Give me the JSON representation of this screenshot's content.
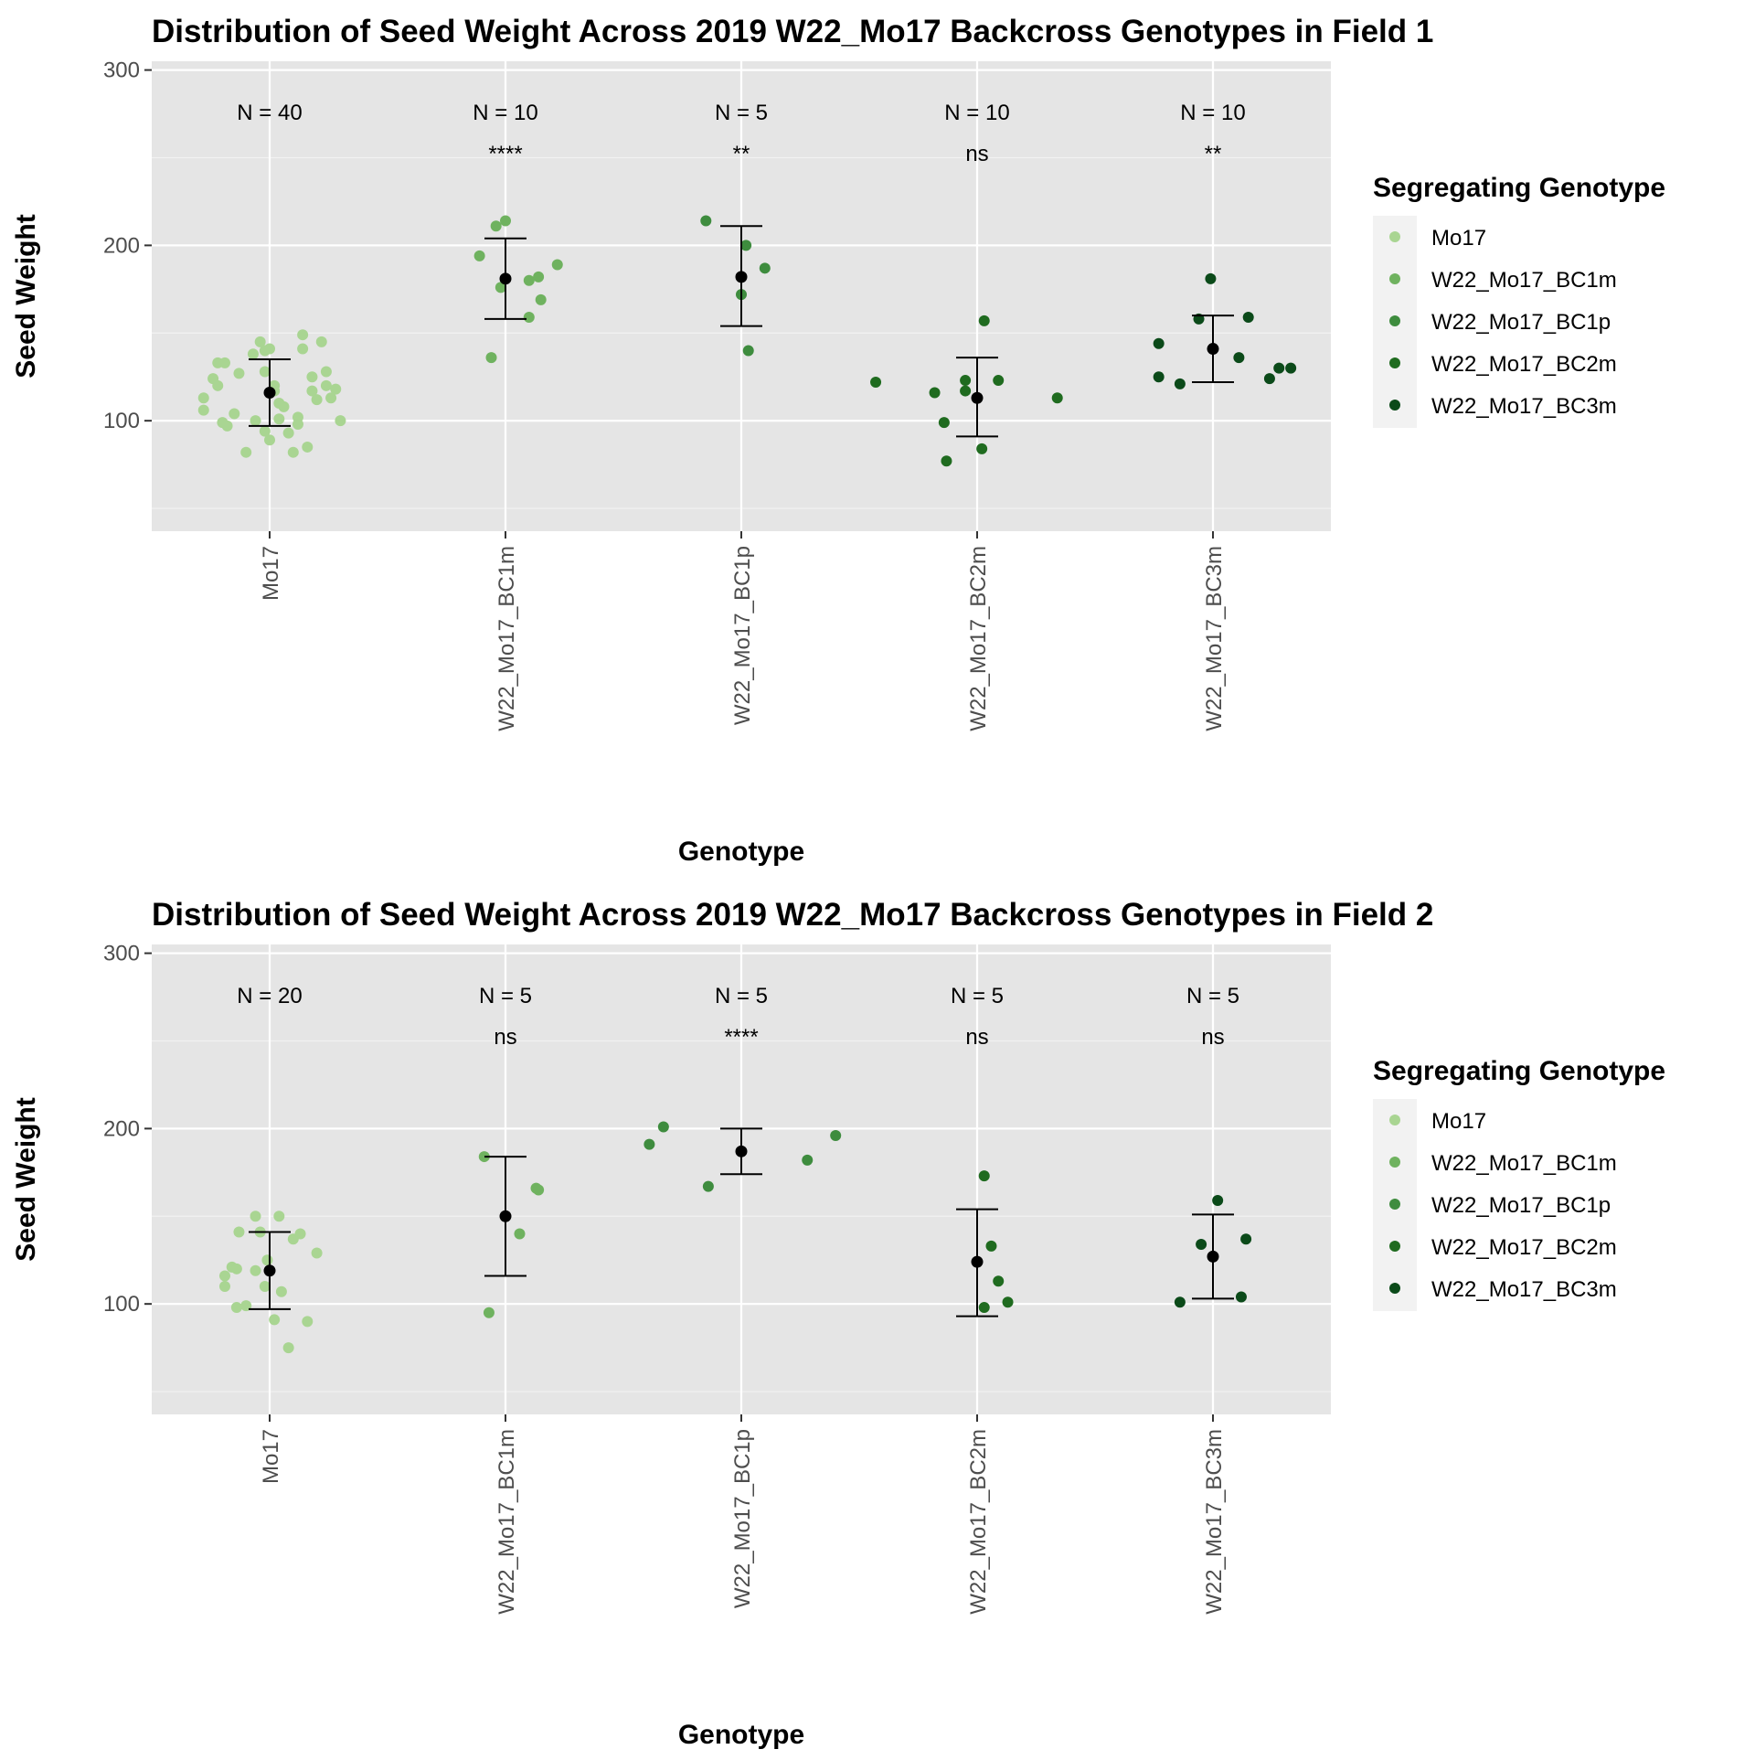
{
  "legend": {
    "title": "Segregating Genotype",
    "items": [
      {
        "label": "Mo17",
        "color": "#a9d592"
      },
      {
        "label": "W22_Mo17_BC1m",
        "color": "#6fb25f"
      },
      {
        "label": "W22_Mo17_BC1p",
        "color": "#3e8c3e"
      },
      {
        "label": "W22_Mo17_BC2m",
        "color": "#1f6b1f"
      },
      {
        "label": "W22_Mo17_BC3m",
        "color": "#0b4a19"
      }
    ]
  },
  "chart_data": [
    {
      "type": "scatter",
      "title": "Distribution of Seed Weight Across 2019 W22_Mo17 Backcross Genotypes in Field 1",
      "xlabel": "Genotype",
      "ylabel": "Seed Weight",
      "ylim": [
        37,
        305
      ],
      "yticks": [
        100,
        200,
        300
      ],
      "grid": true,
      "legend_position": "right",
      "categories": [
        "Mo17",
        "W22_Mo17_BC1m",
        "W22_Mo17_BC1p",
        "W22_Mo17_BC2m",
        "W22_Mo17_BC3m"
      ],
      "n_labels": [
        "N = 40",
        "N = 10",
        "N = 5",
        "N = 10",
        "N = 10"
      ],
      "significance": [
        "",
        "****",
        "**",
        "ns",
        "**"
      ],
      "series": [
        {
          "name": "Mo17",
          "points": [
            [
              -0.28,
              113
            ],
            [
              -0.28,
              106
            ],
            [
              -0.24,
              124
            ],
            [
              -0.22,
              120
            ],
            [
              -0.22,
              133
            ],
            [
              -0.19,
              133
            ],
            [
              -0.2,
              99
            ],
            [
              -0.18,
              97
            ],
            [
              -0.15,
              104
            ],
            [
              -0.13,
              127
            ],
            [
              -0.1,
              82
            ],
            [
              -0.07,
              138
            ],
            [
              -0.04,
              145
            ],
            [
              -0.02,
              140
            ],
            [
              -0.02,
              128
            ],
            [
              0.0,
              141
            ],
            [
              0.02,
              120
            ],
            [
              0.04,
              110
            ],
            [
              0.06,
              108
            ],
            [
              0.08,
              93
            ],
            [
              0.1,
              82
            ],
            [
              0.12,
              102
            ],
            [
              0.14,
              141
            ],
            [
              0.16,
              85
            ],
            [
              0.18,
              125
            ],
            [
              0.14,
              149
            ],
            [
              0.2,
              112
            ],
            [
              0.22,
              145
            ],
            [
              0.24,
              120
            ],
            [
              0.26,
              113
            ],
            [
              0.28,
              118
            ],
            [
              0.3,
              100
            ],
            [
              0.24,
              128
            ],
            [
              -0.02,
              94
            ],
            [
              0.0,
              89
            ],
            [
              0.04,
              101
            ],
            [
              -0.06,
              100
            ],
            [
              0.02,
              117
            ],
            [
              0.12,
              98
            ],
            [
              0.18,
              117
            ]
          ]
        },
        {
          "name": "W22_Mo17_BC1m",
          "points": [
            [
              -0.11,
              194
            ],
            [
              -0.06,
              136
            ],
            [
              -0.04,
              211
            ],
            [
              -0.02,
              176
            ],
            [
              0.0,
              214
            ],
            [
              0.1,
              159
            ],
            [
              0.1,
              180
            ],
            [
              0.14,
              182
            ],
            [
              0.15,
              169
            ],
            [
              0.22,
              189
            ]
          ]
        },
        {
          "name": "W22_Mo17_BC1p",
          "points": [
            [
              -0.15,
              214
            ],
            [
              0.0,
              172
            ],
            [
              0.02,
              200
            ],
            [
              0.03,
              140
            ],
            [
              0.1,
              187
            ]
          ]
        },
        {
          "name": "W22_Mo17_BC2m",
          "points": [
            [
              -0.43,
              122
            ],
            [
              -0.18,
              116
            ],
            [
              -0.14,
              99
            ],
            [
              -0.13,
              77
            ],
            [
              -0.05,
              123
            ],
            [
              -0.05,
              117
            ],
            [
              0.02,
              84
            ],
            [
              0.03,
              157
            ],
            [
              0.09,
              123
            ],
            [
              0.34,
              113
            ]
          ]
        },
        {
          "name": "W22_Mo17_BC3m",
          "points": [
            [
              -0.23,
              144
            ],
            [
              -0.23,
              125
            ],
            [
              -0.14,
              121
            ],
            [
              -0.06,
              158
            ],
            [
              -0.01,
              181
            ],
            [
              0.11,
              136
            ],
            [
              0.15,
              159
            ],
            [
              0.24,
              124
            ],
            [
              0.28,
              130
            ],
            [
              0.33,
              130
            ]
          ]
        }
      ],
      "summary": [
        {
          "mean": 116,
          "lower": 97,
          "upper": 135
        },
        {
          "mean": 181,
          "lower": 158,
          "upper": 204
        },
        {
          "mean": 182,
          "lower": 154,
          "upper": 211
        },
        {
          "mean": 113,
          "lower": 91,
          "upper": 136
        },
        {
          "mean": 141,
          "lower": 122,
          "upper": 160
        }
      ]
    },
    {
      "type": "scatter",
      "title": "Distribution of Seed Weight Across 2019 W22_Mo17 Backcross Genotypes in Field 2",
      "xlabel": "Genotype",
      "ylabel": "Seed Weight",
      "ylim": [
        37,
        305
      ],
      "yticks": [
        100,
        200,
        300
      ],
      "grid": true,
      "legend_position": "right",
      "categories": [
        "Mo17",
        "W22_Mo17_BC1m",
        "W22_Mo17_BC1p",
        "W22_Mo17_BC2m",
        "W22_Mo17_BC3m"
      ],
      "n_labels": [
        "N = 20",
        "N = 5",
        "N = 5",
        "N = 5",
        "N = 5"
      ],
      "significance": [
        "",
        "ns",
        "****",
        "ns",
        "ns"
      ],
      "series": [
        {
          "name": "Mo17",
          "points": [
            [
              -0.19,
              116
            ],
            [
              -0.19,
              110
            ],
            [
              -0.16,
              121
            ],
            [
              -0.14,
              120
            ],
            [
              -0.14,
              98
            ],
            [
              -0.13,
              141
            ],
            [
              -0.1,
              99
            ],
            [
              -0.06,
              150
            ],
            [
              -0.06,
              119
            ],
            [
              -0.04,
              141
            ],
            [
              -0.02,
              110
            ],
            [
              0.02,
              91
            ],
            [
              0.04,
              150
            ],
            [
              0.05,
              107
            ],
            [
              0.08,
              75
            ],
            [
              0.1,
              137
            ],
            [
              0.13,
              140
            ],
            [
              0.16,
              90
            ],
            [
              0.2,
              129
            ],
            [
              -0.01,
              125
            ]
          ]
        },
        {
          "name": "W22_Mo17_BC1m",
          "points": [
            [
              -0.09,
              184
            ],
            [
              -0.07,
              95
            ],
            [
              0.06,
              140
            ],
            [
              0.13,
              166
            ],
            [
              0.14,
              165
            ]
          ]
        },
        {
          "name": "W22_Mo17_BC1p",
          "points": [
            [
              -0.39,
              191
            ],
            [
              -0.33,
              201
            ],
            [
              -0.14,
              167
            ],
            [
              0.28,
              182
            ],
            [
              0.4,
              196
            ]
          ]
        },
        {
          "name": "W22_Mo17_BC2m",
          "points": [
            [
              0.03,
              98
            ],
            [
              0.03,
              173
            ],
            [
              0.06,
              133
            ],
            [
              0.09,
              113
            ],
            [
              0.13,
              101
            ]
          ]
        },
        {
          "name": "W22_Mo17_BC3m",
          "points": [
            [
              -0.14,
              101
            ],
            [
              -0.05,
              134
            ],
            [
              0.02,
              159
            ],
            [
              0.12,
              104
            ],
            [
              0.14,
              137
            ]
          ]
        }
      ],
      "summary": [
        {
          "mean": 119,
          "lower": 97,
          "upper": 141
        },
        {
          "mean": 150,
          "lower": 116,
          "upper": 184
        },
        {
          "mean": 187,
          "lower": 174,
          "upper": 200
        },
        {
          "mean": 124,
          "lower": 93,
          "upper": 154
        },
        {
          "mean": 127,
          "lower": 103,
          "upper": 151
        }
      ]
    }
  ]
}
